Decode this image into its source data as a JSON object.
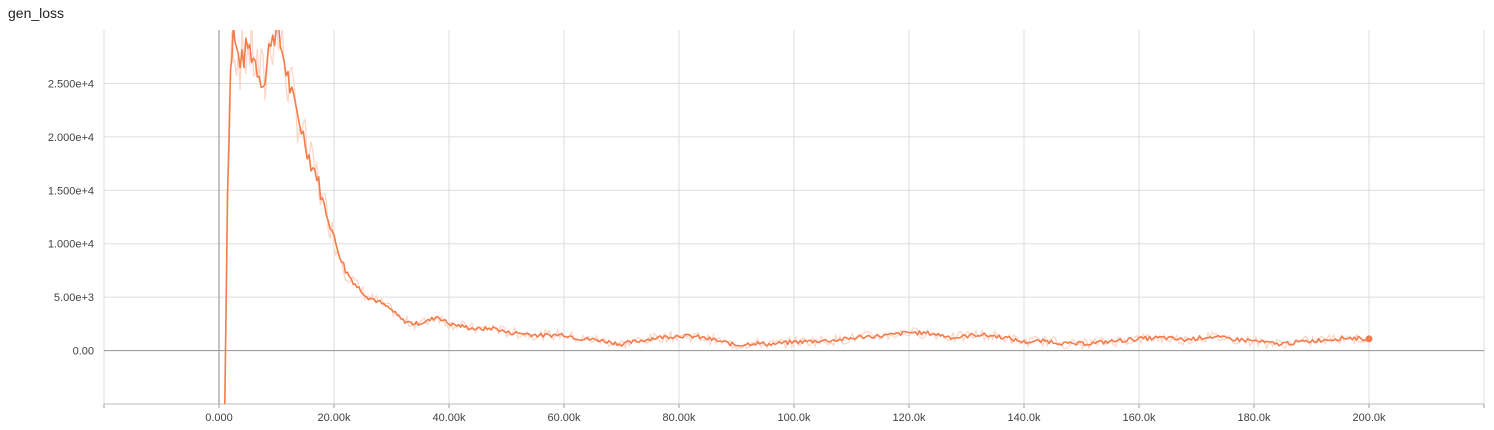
{
  "chart_data": {
    "type": "line",
    "title": "gen_loss",
    "xlabel": "",
    "ylabel": "",
    "xlim": [
      -20000,
      220000
    ],
    "ylim": [
      -5000,
      30000
    ],
    "grid": true,
    "x_ticks": [
      0,
      20000,
      40000,
      60000,
      80000,
      100000,
      120000,
      140000,
      160000,
      180000,
      200000
    ],
    "x_tick_labels": [
      "0.000",
      "20.00k",
      "40.00k",
      "60.00k",
      "80.00k",
      "100.0k",
      "120.0k",
      "140.0k",
      "160.0k",
      "180.0k",
      "200.0k"
    ],
    "y_ticks": [
      0,
      5000,
      10000,
      15000,
      20000,
      25000
    ],
    "y_tick_labels": [
      "0.00",
      "5.00e+3",
      "1.000e+4",
      "1.500e+4",
      "2.000e+4",
      "2.500e+4"
    ],
    "series": [
      {
        "color": "#f47c4b",
        "raw_color": "#fbd3c3",
        "x": [
          1000,
          1500,
          2000,
          2500,
          3000,
          4000,
          5000,
          6000,
          7000,
          8000,
          9000,
          10000,
          11000,
          12000,
          13000,
          14000,
          15000,
          16000,
          17000,
          18000,
          19000,
          20000,
          22000,
          24000,
          26000,
          28000,
          30000,
          32000,
          34000,
          36000,
          38000,
          40000,
          42000,
          45000,
          48000,
          50000,
          53000,
          56000,
          60000,
          63000,
          66000,
          70000,
          73000,
          76000,
          80000,
          83000,
          86000,
          90000,
          93000,
          96000,
          100000,
          104000,
          108000,
          112000,
          116000,
          120000,
          124000,
          128000,
          132000,
          136000,
          140000,
          144000,
          148000,
          152000,
          156000,
          160000,
          164000,
          168000,
          172000,
          176000,
          180000,
          184000,
          188000,
          192000,
          196000,
          200000
        ],
        "y": [
          -5000,
          15000,
          26000,
          30000,
          28000,
          27000,
          28500,
          27500,
          26000,
          25000,
          29500,
          30000,
          28000,
          25500,
          23000,
          21500,
          19500,
          17500,
          16500,
          14000,
          12500,
          10500,
          7500,
          6000,
          5000,
          4500,
          3800,
          2800,
          2500,
          2700,
          3200,
          2500,
          2300,
          2000,
          2100,
          1700,
          1600,
          1400,
          1500,
          1100,
          1000,
          600,
          900,
          1200,
          1400,
          1300,
          1000,
          500,
          700,
          600,
          800,
          900,
          1000,
          1300,
          1400,
          1700,
          1600,
          1200,
          1500,
          1300,
          800,
          900,
          600,
          700,
          900,
          1100,
          1200,
          1000,
          1300,
          1100,
          900,
          600,
          800,
          1000,
          1200,
          1100
        ]
      }
    ]
  }
}
